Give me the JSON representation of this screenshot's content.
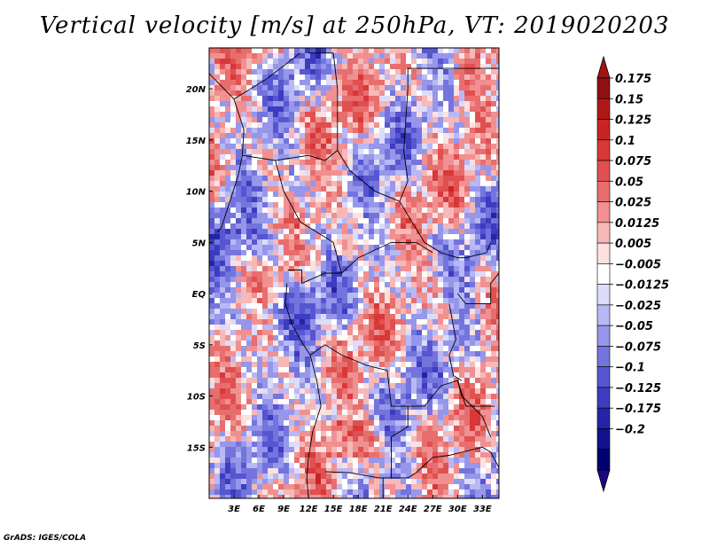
{
  "chart_data": {
    "type": "heatmap",
    "title": "Vertical velocity [m/s] at 250hPa, VT: 2019020203",
    "variable": "Vertical velocity",
    "units": "m/s",
    "level": "250hPa",
    "valid_time": "2019020203",
    "lon_range": [
      0,
      35
    ],
    "lat_range": [
      -20,
      24
    ],
    "x_ticks": [
      3,
      6,
      9,
      12,
      15,
      18,
      21,
      24,
      27,
      30,
      33
    ],
    "x_tick_labels": [
      "3E",
      "6E",
      "9E",
      "12E",
      "15E",
      "18E",
      "21E",
      "24E",
      "27E",
      "30E",
      "33E"
    ],
    "y_ticks": [
      20,
      15,
      10,
      5,
      0,
      -5,
      -10,
      -15
    ],
    "y_tick_labels": [
      "20N",
      "15N",
      "10N",
      "5N",
      "EQ",
      "5S",
      "10S",
      "15S"
    ],
    "colorbar_levels": [
      0.175,
      0.15,
      0.125,
      0.1,
      0.075,
      0.05,
      0.025,
      0.0125,
      0.005,
      -0.005,
      -0.0125,
      -0.025,
      -0.05,
      -0.075,
      -0.1,
      -0.125,
      -0.175,
      -0.2
    ],
    "colorbar_labels": [
      "0.175",
      "0.15",
      "0.125",
      "0.1",
      "0.075",
      "0.05",
      "0.025",
      "0.0125",
      "0.005",
      "−0.005",
      "−0.0125",
      "−0.025",
      "−0.05",
      "−0.075",
      "−0.1",
      "−0.125",
      "−0.175",
      "−0.2"
    ],
    "colorbar_colors": [
      "#8f1010",
      "#b01818",
      "#c82424",
      "#d83838",
      "#e05050",
      "#e86e6e",
      "#f09090",
      "#f7b8b8",
      "#fde0e0",
      "#ffffff",
      "#dcdcfa",
      "#b8b8f4",
      "#9696ea",
      "#7474de",
      "#5656d0",
      "#3c3cc0",
      "#2424a8",
      "#12128c",
      "#000070"
    ],
    "colorbar_end_top": "#a01414",
    "colorbar_end_bottom": "#1a0a80"
  },
  "footer": {
    "credit": "GrADS: IGES/COLA"
  }
}
